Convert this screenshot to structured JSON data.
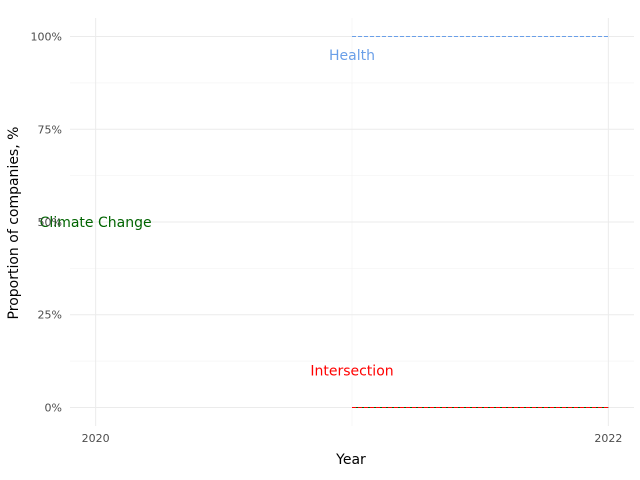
{
  "chart_data": {
    "type": "line",
    "title": "",
    "xlabel": "Year",
    "ylabel": "Proportion of companies, %",
    "xlim": [
      2019.9,
      2022.1
    ],
    "ylim": [
      -5,
      105
    ],
    "x_ticks": [
      2020,
      2022
    ],
    "x_tick_labels": [
      "2020",
      "2022"
    ],
    "y_ticks": [
      0,
      25,
      50,
      75,
      100
    ],
    "y_tick_labels": [
      "0%",
      "25%",
      "50%",
      "75%",
      "100%"
    ],
    "grid": true,
    "legend": "none",
    "series": [
      {
        "name": "Health",
        "x": [
          2021,
          2022
        ],
        "y": [
          100,
          100
        ],
        "color": "#6a9fe8",
        "dashed": true,
        "label": {
          "text": "Health",
          "x": 2021,
          "y": 95
        }
      },
      {
        "name": "Climate Change",
        "x": [
          2021,
          2022
        ],
        "y": [
          0,
          0
        ],
        "color": "#006400",
        "dashed": false,
        "label": {
          "text": "Climate Change",
          "x": 2020,
          "y": 50
        }
      },
      {
        "name": "Intersection",
        "x": [
          2021,
          2022
        ],
        "y": [
          0,
          0
        ],
        "color": "#ff0000",
        "dashed": true,
        "label": {
          "text": "Intersection",
          "x": 2021,
          "y": 10
        }
      }
    ]
  }
}
